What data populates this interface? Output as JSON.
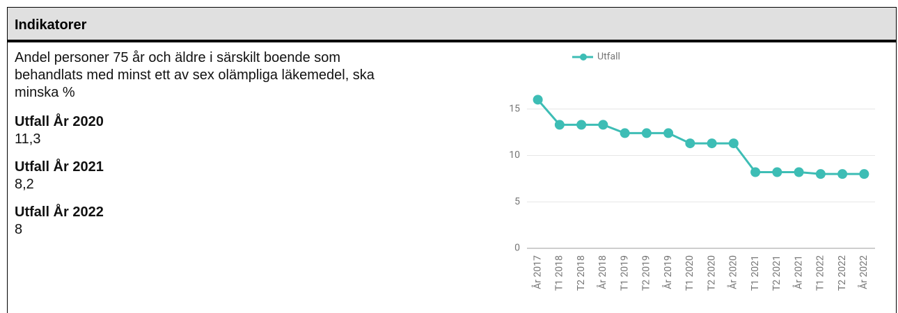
{
  "header": {
    "title": "Indikatorer"
  },
  "description": "Andel personer 75 år och äldre i särskilt boende som behandlats med minst ett av sex olämpliga läkemedel, ska minska %",
  "outcomes": [
    {
      "label": "Utfall År 2020",
      "value": "11,3"
    },
    {
      "label": "Utfall År 2021",
      "value": "8,2"
    },
    {
      "label": "Utfall År 2022",
      "value": "8"
    }
  ],
  "chart_data": {
    "type": "line",
    "categories": [
      "År 2017",
      "T1 2018",
      "T2 2018",
      "År 2018",
      "T1 2019",
      "T2 2019",
      "År 2019",
      "T1 2020",
      "T2 2020",
      "År 2020",
      "T1 2021",
      "T2 2021",
      "År 2021",
      "T1 2022",
      "T2 2022",
      "År 2022"
    ],
    "series": [
      {
        "name": "Utfall",
        "color": "#3dbdb5",
        "values": [
          16,
          13.3,
          13.3,
          13.3,
          12.4,
          12.4,
          12.4,
          11.3,
          11.3,
          11.3,
          8.2,
          8.2,
          8.2,
          8,
          8,
          8
        ]
      }
    ],
    "ylim": [
      0,
      17
    ],
    "yticks": [
      0,
      5,
      10,
      15
    ],
    "grid": true,
    "legend": "top"
  }
}
